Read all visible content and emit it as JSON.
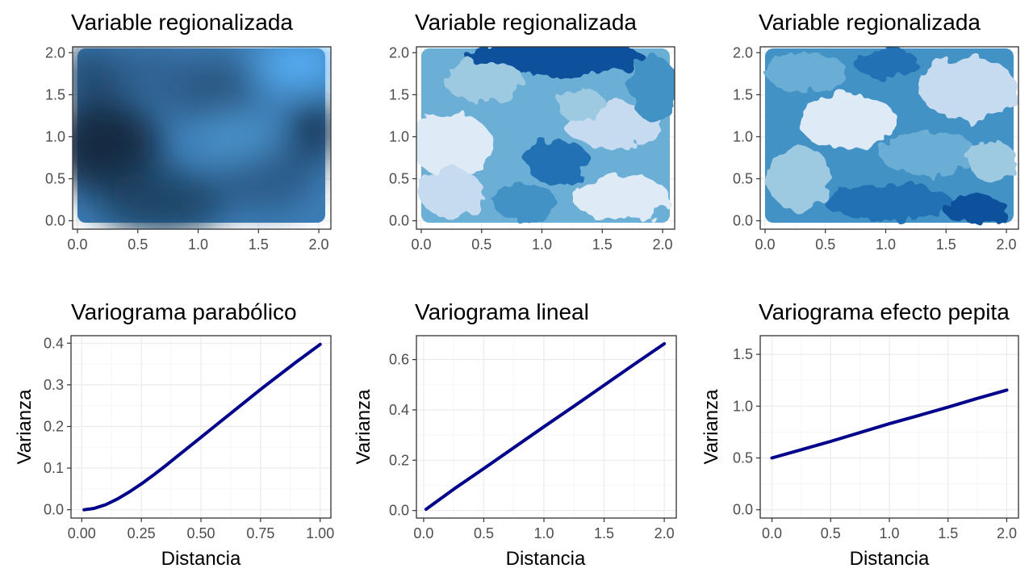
{
  "chart_data": [
    {
      "type": "heatmap",
      "title": "Variable regionalizada",
      "xlim": [
        0,
        2
      ],
      "ylim": [
        0,
        2
      ],
      "x_ticks": [
        "0.0",
        "0.5",
        "1.0",
        "1.5",
        "2.0"
      ],
      "y_ticks": [
        "0.0",
        "0.5",
        "1.0",
        "1.5",
        "2.0"
      ],
      "xlabel": "",
      "ylabel": "",
      "color_scale": "continuous-blue",
      "colors": [
        "#132b43",
        "#56b1f7"
      ],
      "grid": true,
      "legend": "none"
    },
    {
      "type": "heatmap",
      "title": "Variable regionalizada",
      "xlim": [
        0,
        2
      ],
      "ylim": [
        0,
        2
      ],
      "x_ticks": [
        "0.0",
        "0.5",
        "1.0",
        "1.5",
        "2.0"
      ],
      "y_ticks": [
        "0.0",
        "0.5",
        "1.0",
        "1.5",
        "2.0"
      ],
      "xlabel": "",
      "ylabel": "",
      "color_scale": "discrete-blues",
      "colors": [
        "#deebf7",
        "#c6dbef",
        "#9ecae1",
        "#6baed6",
        "#4292c6",
        "#2171b5",
        "#08519c"
      ],
      "grid": true,
      "legend": "none"
    },
    {
      "type": "heatmap",
      "title": "Variable regionalizada",
      "xlim": [
        0,
        2
      ],
      "ylim": [
        0,
        2
      ],
      "x_ticks": [
        "0.0",
        "0.5",
        "1.0",
        "1.5",
        "2.0"
      ],
      "y_ticks": [
        "0.0",
        "0.5",
        "1.0",
        "1.5",
        "2.0"
      ],
      "xlabel": "",
      "ylabel": "",
      "color_scale": "discrete-blues",
      "colors": [
        "#deebf7",
        "#c6dbef",
        "#9ecae1",
        "#6baed6",
        "#4292c6",
        "#2171b5",
        "#08519c"
      ],
      "grid": true,
      "legend": "none"
    },
    {
      "type": "line",
      "title": "Variograma parabólico",
      "xlabel": "Distancia",
      "ylabel": "Varianza",
      "xlim": [
        0,
        1
      ],
      "ylim": [
        0,
        0.4
      ],
      "x_ticks": [
        "0.00",
        "0.25",
        "0.50",
        "0.75",
        "1.00"
      ],
      "y_ticks": [
        "0.0",
        "0.1",
        "0.2",
        "0.3",
        "0.4"
      ],
      "line_color": "#00008b",
      "x": [
        0.01,
        0.05,
        0.1,
        0.15,
        0.2,
        0.25,
        0.3,
        0.35,
        0.4,
        0.45,
        0.5,
        0.55,
        0.6,
        0.65,
        0.7,
        0.75,
        0.8,
        0.85,
        0.9,
        0.95,
        1.0
      ],
      "y": [
        0.0,
        0.003,
        0.012,
        0.026,
        0.043,
        0.062,
        0.083,
        0.105,
        0.128,
        0.151,
        0.174,
        0.197,
        0.22,
        0.243,
        0.266,
        0.289,
        0.311,
        0.333,
        0.355,
        0.376,
        0.397
      ],
      "grid": true,
      "legend": "none"
    },
    {
      "type": "line",
      "title": "Variograma lineal",
      "xlabel": "Distancia",
      "ylabel": "Varianza",
      "xlim": [
        0,
        2
      ],
      "ylim": [
        0,
        0.66
      ],
      "x_ticks": [
        "0.0",
        "0.5",
        "1.0",
        "1.5",
        "2.0"
      ],
      "y_ticks": [
        "0.0",
        "0.2",
        "0.4",
        "0.6"
      ],
      "line_color": "#00008b",
      "x": [
        0.02,
        0.25,
        0.5,
        0.75,
        1.0,
        1.25,
        1.5,
        1.75,
        2.0
      ],
      "y": [
        0.005,
        0.085,
        0.167,
        0.25,
        0.333,
        0.415,
        0.498,
        0.581,
        0.663
      ],
      "grid": true,
      "legend": "none"
    },
    {
      "type": "line",
      "title": "Variograma efecto pepita",
      "xlabel": "Distancia",
      "ylabel": "Varianza",
      "xlim": [
        0,
        2
      ],
      "ylim": [
        0,
        1.6
      ],
      "x_ticks": [
        "0.0",
        "0.5",
        "1.0",
        "1.5",
        "2.0"
      ],
      "y_ticks": [
        "0.0",
        "0.5",
        "1.0",
        "1.5"
      ],
      "line_color": "#00008b",
      "x": [
        0.0,
        0.25,
        0.5,
        0.75,
        1.0,
        1.25,
        1.5,
        1.75,
        2.0
      ],
      "y": [
        0.5,
        0.58,
        0.66,
        0.745,
        0.83,
        0.91,
        0.99,
        1.075,
        1.155
      ],
      "grid": true,
      "legend": "none"
    }
  ]
}
